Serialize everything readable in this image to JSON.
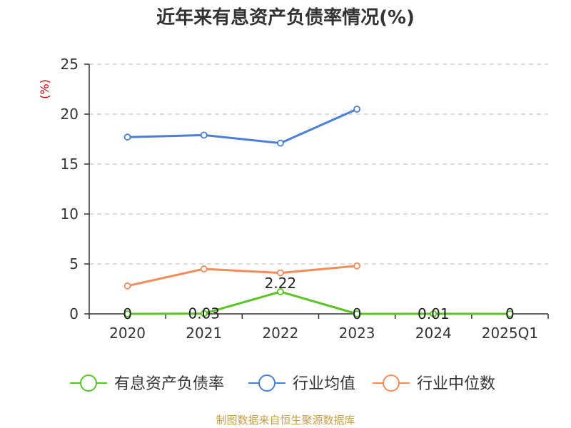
{
  "title": "近年来有息资产负债率情况(%)",
  "source": "制图数据来自恒生聚源数据库",
  "chart_data": {
    "type": "line",
    "title": "近年来有息资产负债率情况(%)",
    "ylabel": "(%)",
    "xlabel": "",
    "categories": [
      "2020",
      "2021",
      "2022",
      "2023",
      "2024",
      "2025Q1"
    ],
    "ylim": [
      0,
      25
    ],
    "yticks": [
      0,
      5,
      10,
      15,
      20,
      25
    ],
    "grid": true,
    "legend_position": "bottom",
    "series": [
      {
        "name": "有息资产负债率",
        "color": "#5cc326",
        "values": [
          0,
          0.03,
          2.22,
          0,
          0.01,
          0
        ],
        "data_labels": [
          "0",
          "0.03",
          "2.22",
          "0",
          "0.01",
          "0"
        ]
      },
      {
        "name": "行业均值",
        "color": "#4a7fd9",
        "values": [
          17.7,
          17.9,
          17.1,
          20.5,
          null,
          null
        ]
      },
      {
        "name": "行业中位数",
        "color": "#f48c5a",
        "values": [
          2.8,
          4.5,
          4.1,
          4.8,
          null,
          null
        ]
      }
    ]
  }
}
